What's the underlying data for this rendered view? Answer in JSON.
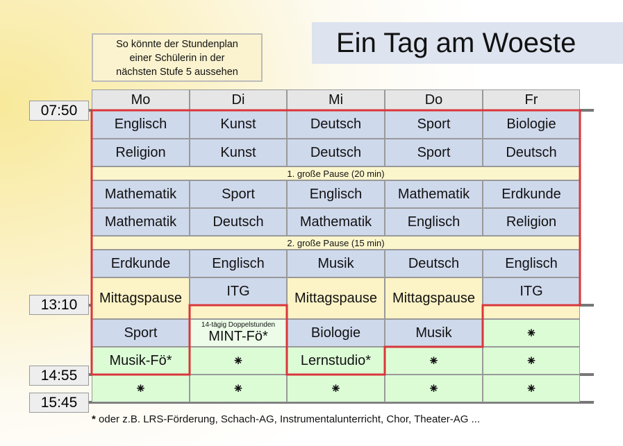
{
  "title": "Ein Tag am Woeste",
  "note": [
    "So könnte der Stundenplan",
    "einer Schülerin in der",
    "nächsten Stufe 5 aussehen"
  ],
  "times": [
    "07:50",
    "13:10",
    "14:55",
    "15:45"
  ],
  "days": [
    "Mo",
    "Di",
    "Mi",
    "Do",
    "Fr"
  ],
  "rows": [
    [
      "Englisch",
      "Kunst",
      "Deutsch",
      "Sport",
      "Biologie"
    ],
    [
      "Religion",
      "Kunst",
      "Deutsch",
      "Sport",
      "Deutsch"
    ],
    [
      "Mathematik",
      "Sport",
      "Englisch",
      "Mathematik",
      "Erdkunde"
    ],
    [
      "Mathematik",
      "Deutsch",
      "Mathematik",
      "Englisch",
      "Religion"
    ],
    [
      "Erdkunde",
      "Englisch",
      "Musik",
      "Deutsch",
      "Englisch"
    ],
    [
      "Mittagspause",
      "ITG",
      "Mittagspause",
      "Mittagspause",
      "ITG"
    ],
    [
      "Sport",
      "MINT-Fö*",
      "Biologie",
      "Musik",
      "⁕"
    ],
    [
      "Musik-Fö*",
      "⁕",
      "Lernstudio*",
      "⁕",
      "⁕"
    ],
    [
      "⁕",
      "⁕",
      "⁕",
      "⁕",
      "⁕"
    ]
  ],
  "mint_note": "14-tägig Doppelstunden",
  "pause1": "1. große Pause (20 min)",
  "pause2": "2. große Pause (15 min)",
  "footnote_star": "*",
  "footnote": " oder z.B. LRS-Förderung, Schach-AG, Instrumentalunterricht, Chor, Theater-AG ...",
  "colors": {
    "outline": "#d9363a",
    "lesson": "#cfd9ec",
    "break": "#fcf3c6",
    "afternoon": "#dcfcd6"
  }
}
